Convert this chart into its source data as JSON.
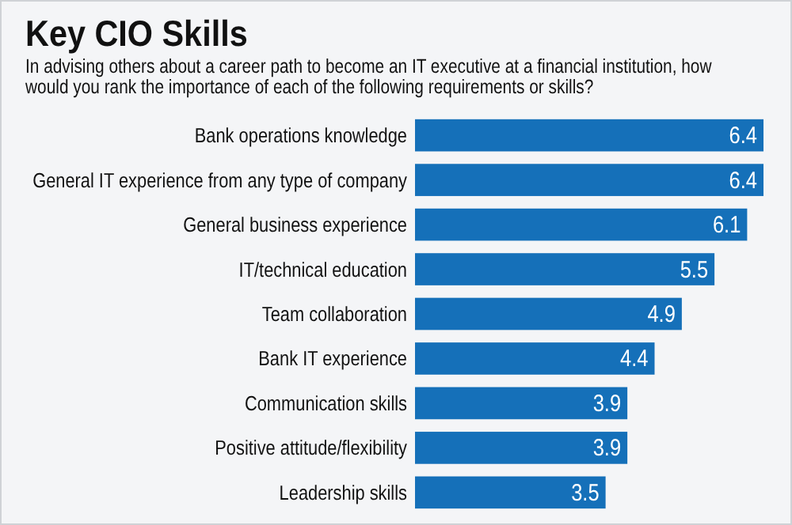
{
  "chart_data": {
    "type": "bar",
    "orientation": "horizontal",
    "title": "Key CIO Skills",
    "subtitle": "In advising others about a career path to become an IT executive at a financial institution, how would you rank the importance of each of the following requirements or skills?",
    "categories": [
      "Bank operations knowledge",
      "General IT experience from any type of company",
      "General business experience",
      "IT/technical education",
      "Team collaboration",
      "Bank IT experience",
      "Communication skills",
      "Positive attitude/flexibility",
      "Leadership skills"
    ],
    "values": [
      6.4,
      6.4,
      6.1,
      5.5,
      4.9,
      4.4,
      3.9,
      3.9,
      3.5
    ],
    "color": "#1570b9",
    "data_labels": true
  }
}
